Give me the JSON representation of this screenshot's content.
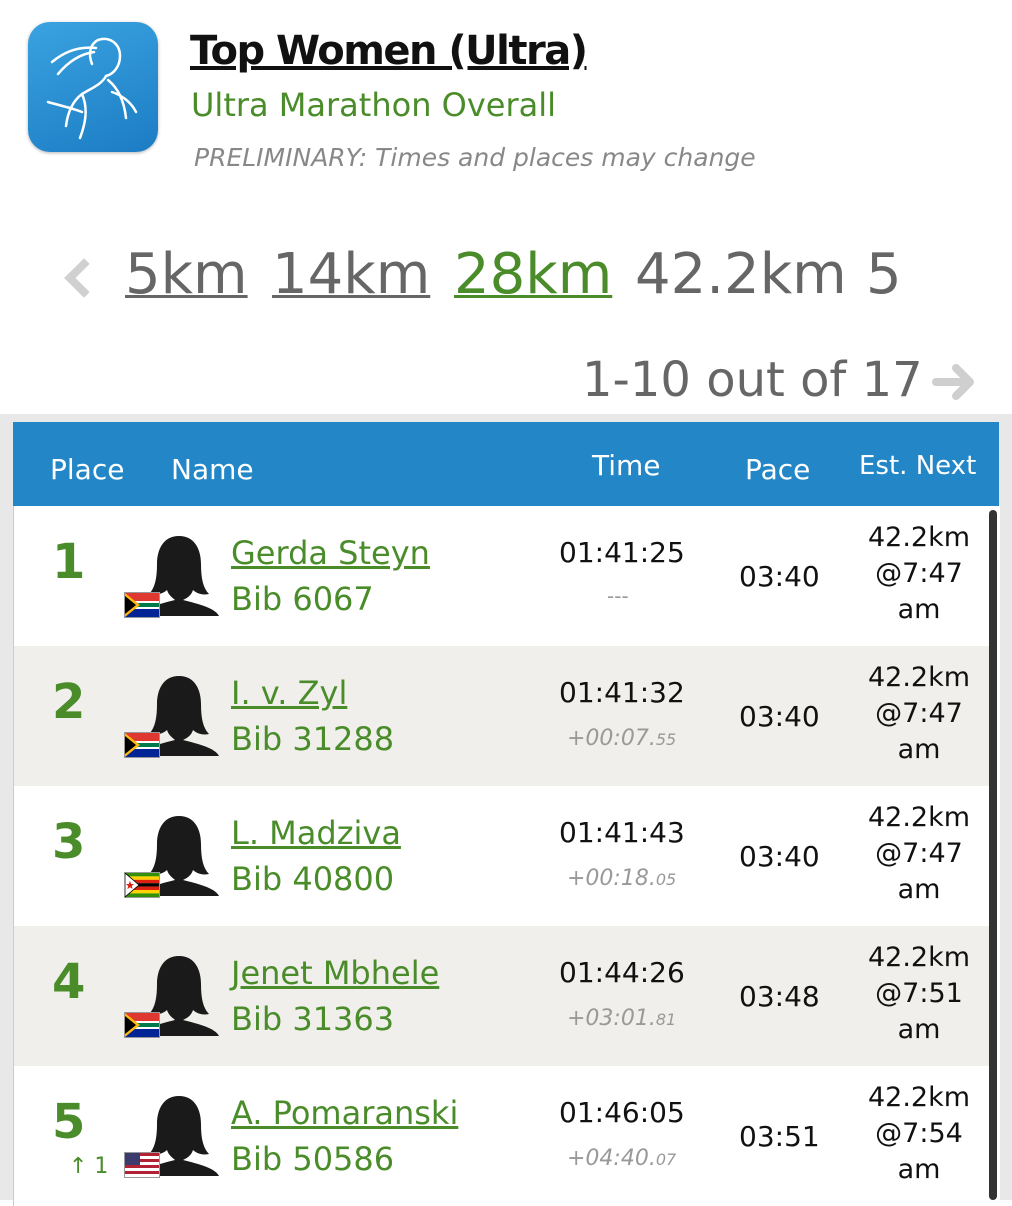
{
  "header": {
    "title": "Top Women (Ultra)",
    "subtitle": "Ultra Marathon Overall",
    "notice": "PRELIMINARY: Times and places may change"
  },
  "splits": [
    {
      "label": "5km",
      "state": "link"
    },
    {
      "label": "14km",
      "state": "link"
    },
    {
      "label": "28km",
      "state": "active"
    },
    {
      "label": "42.2km",
      "state": "plain"
    },
    {
      "label": "5",
      "state": "plain"
    }
  ],
  "pager": {
    "label": "1-10 out of 17"
  },
  "columns": {
    "place": "Place",
    "name": "Name",
    "time": "Time",
    "pace": "Pace",
    "est_next": "Est. Next"
  },
  "rows": [
    {
      "place": "1",
      "name": "Gerda Steyn",
      "bib": "Bib 6067",
      "time": "01:41:25",
      "gap_main": "---",
      "gap_frac": "",
      "pace": "03:40",
      "est_split": "42.2km",
      "est_time": "@7:47",
      "est_ampm": "am",
      "flag": "za",
      "movement": ""
    },
    {
      "place": "2",
      "name": "I. v. Zyl",
      "bib": "Bib 31288",
      "time": "01:41:32",
      "gap_main": "+00:07.",
      "gap_frac": "55",
      "pace": "03:40",
      "est_split": "42.2km",
      "est_time": "@7:47",
      "est_ampm": "am",
      "flag": "za",
      "movement": ""
    },
    {
      "place": "3",
      "name": "L. Madziva",
      "bib": "Bib 40800",
      "time": "01:41:43",
      "gap_main": "+00:18.",
      "gap_frac": "05",
      "pace": "03:40",
      "est_split": "42.2km",
      "est_time": "@7:47",
      "est_ampm": "am",
      "flag": "zw",
      "movement": ""
    },
    {
      "place": "4",
      "name": "Jenet Mbhele",
      "bib": "Bib 31363",
      "time": "01:44:26",
      "gap_main": "+03:01.",
      "gap_frac": "81",
      "pace": "03:48",
      "est_split": "42.2km",
      "est_time": "@7:51",
      "est_ampm": "am",
      "flag": "za",
      "movement": ""
    },
    {
      "place": "5",
      "name": "A. Pomaranski",
      "bib": "Bib 50586",
      "time": "01:46:05",
      "gap_main": "+04:40.",
      "gap_frac": "07",
      "pace": "03:51",
      "est_split": "42.2km",
      "est_time": "@7:54",
      "est_ampm": "am",
      "flag": "us",
      "movement": "↑ 1"
    }
  ],
  "colors": {
    "accent_green": "#4a8c2a",
    "header_blue": "#2286c7"
  },
  "icons": {
    "back": "chevron-left-icon",
    "next": "arrow-right-icon",
    "app": "runner-icon"
  }
}
